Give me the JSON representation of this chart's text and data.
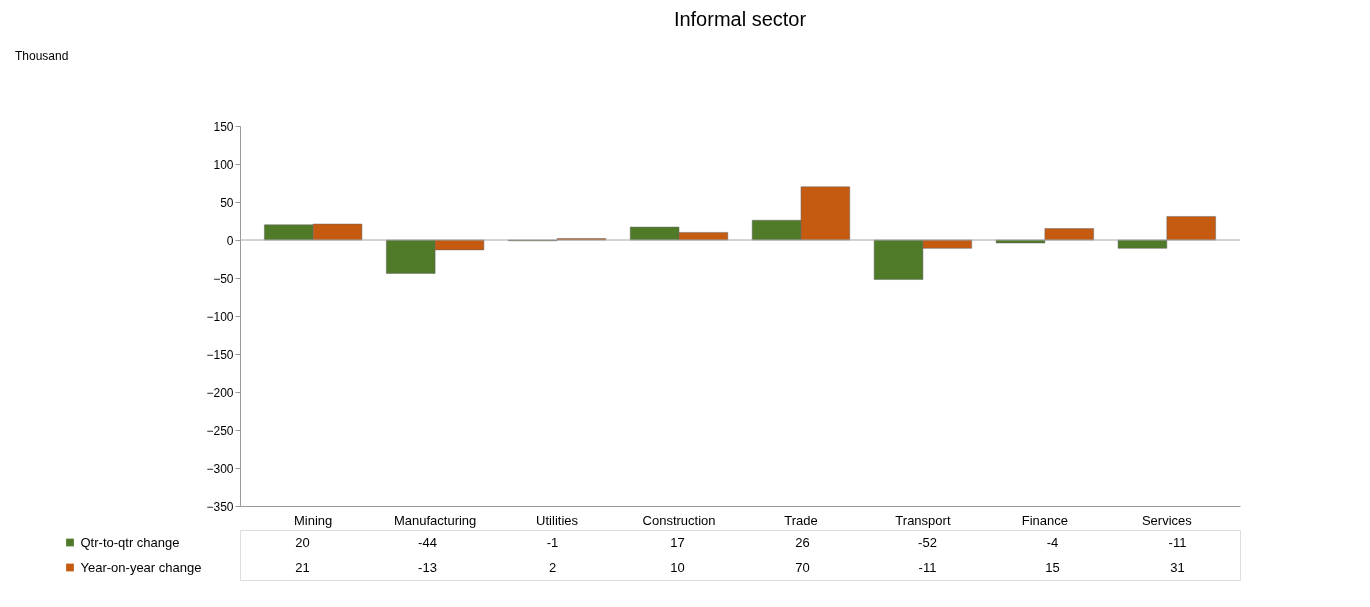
{
  "chart_data": {
    "type": "bar",
    "title": "Informal sector",
    "annotations": [
      "Thousand"
    ],
    "categories": [
      "Mining",
      "Manufacturing",
      "Utilities",
      "Construction",
      "Trade",
      "Transport",
      "Finance",
      "Services"
    ],
    "series": [
      {
        "name": "Qtr-to-qtr change",
        "color": "#4f7a28",
        "values": [
          20,
          -44,
          -1,
          17,
          26,
          -52,
          -4,
          -11
        ]
      },
      {
        "name": "Year-on-year change",
        "color": "#c55a11",
        "values": [
          21,
          -13,
          2,
          10,
          70,
          -11,
          15,
          31
        ]
      }
    ],
    "ylim": [
      -350,
      150
    ],
    "yticks": [
      -350,
      -300,
      -250,
      -200,
      -150,
      -100,
      -50,
      0,
      50,
      100,
      150
    ],
    "ref_lines": [
      {
        "axis": "y",
        "value": 0,
        "color": "#a6a6a6"
      }
    ],
    "grid": false,
    "legend": "bottom",
    "data_labels": true
  }
}
